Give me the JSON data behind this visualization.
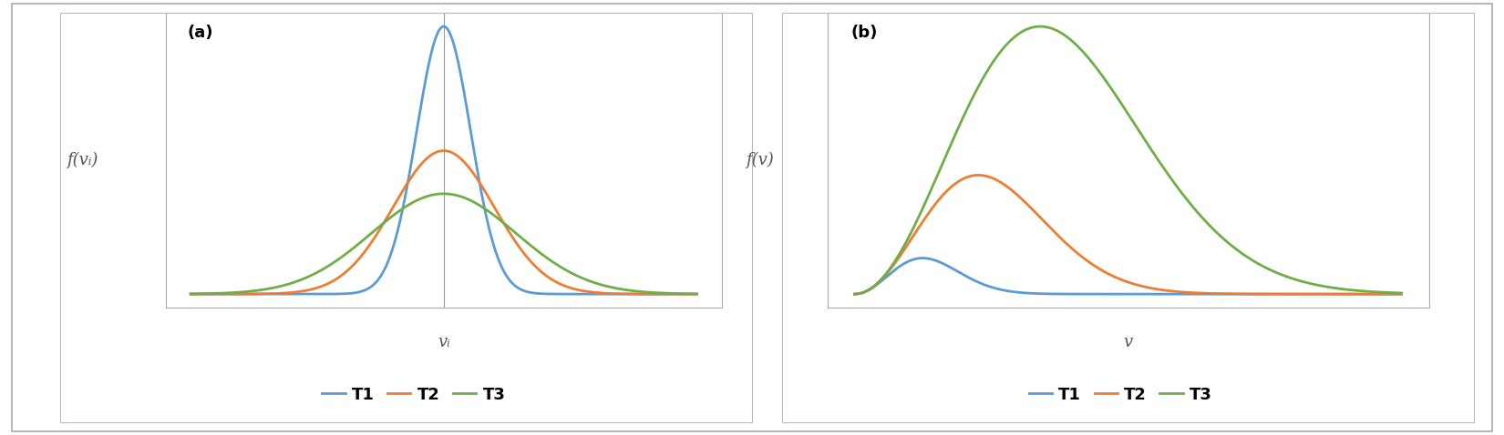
{
  "colors": {
    "T1": "#5b9bd5",
    "T2": "#ed7d31",
    "T3": "#70ad47"
  },
  "legend_labels": [
    "T1",
    "T2",
    "T3"
  ],
  "panel_a_label": "(a)",
  "panel_b_label": "(b)",
  "ylabel_a": "f(vᵢ)",
  "ylabel_b": "f(v)",
  "xlabel_a": "vᵢ",
  "xlabel_b": "v",
  "gaussian_stds_a": [
    0.15,
    0.28,
    0.4
  ],
  "maxwell_a_params": [
    0.22,
    0.4,
    0.6
  ],
  "line_width": 2.0,
  "background_color": "#ffffff",
  "plot_bg_color": "#ffffff",
  "outer_box_color": "#bbbbbb",
  "inner_box_color": "#aaaaaa",
  "vline_color": "#999999",
  "font_color": "#777777",
  "label_color": "#555555",
  "legend_fontsize": 13,
  "label_fontsize": 13,
  "panel_label_fontsize": 13
}
